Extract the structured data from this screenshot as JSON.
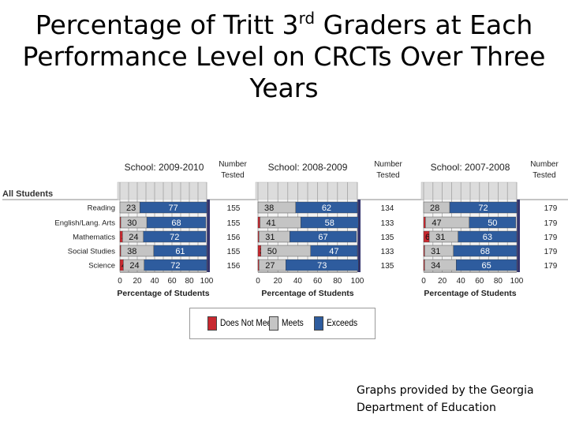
{
  "slide": {
    "title_part1": "Percentage of  Tritt 3",
    "title_sup": "rd",
    "title_part2": " Graders at Each Performance Level on CRCTs Over Three Years",
    "credit_line1": "Graphs provided by the Georgia",
    "credit_line2": "Department of Education"
  },
  "colors": {
    "does_not_meet": "#c8282f",
    "meets": "#c4c4c4",
    "exceeds": "#2e5c9e",
    "panel_back": "#35356e"
  },
  "chart_data": [
    {
      "type": "bar",
      "orientation": "horizontal",
      "stacked": true,
      "title": "School: 2009-2010",
      "group_label": "All Students",
      "categories": [
        "Reading",
        "English/Lang. Arts",
        "Mathematics",
        "Social Studies",
        "Science"
      ],
      "series": [
        {
          "name": "Does Not Meet",
          "values": [
            0,
            1,
            3,
            1,
            4
          ]
        },
        {
          "name": "Meets",
          "values": [
            23,
            30,
            24,
            38,
            24
          ]
        },
        {
          "name": "Exceeds",
          "values": [
            77,
            68,
            72,
            61,
            72
          ]
        }
      ],
      "number_tested_label": "Number Tested",
      "number_tested": [
        "155",
        "155",
        "156",
        "155",
        "156"
      ],
      "xlabel": "Percentage of Students",
      "xticks": [
        "0",
        "20",
        "40",
        "60",
        "80",
        "100"
      ],
      "xlim": [
        0,
        100
      ],
      "grid": true
    },
    {
      "type": "bar",
      "orientation": "horizontal",
      "stacked": true,
      "title": "School: 2008-2009",
      "categories": [
        "Reading",
        "English/Lang. Arts",
        "Mathematics",
        "Social Studies",
        "Science"
      ],
      "series": [
        {
          "name": "Does Not Meet",
          "values": [
            0,
            2,
            1,
            3,
            1
          ]
        },
        {
          "name": "Meets",
          "values": [
            38,
            41,
            31,
            50,
            27
          ]
        },
        {
          "name": "Exceeds",
          "values": [
            62,
            58,
            67,
            47,
            73
          ]
        }
      ],
      "number_tested_label": "Number Tested",
      "number_tested": [
        "134",
        "133",
        "135",
        "133",
        "135"
      ],
      "xlabel": "Percentage of Students",
      "xticks": [
        "0",
        "20",
        "40",
        "60",
        "80",
        "100"
      ],
      "xlim": [
        0,
        100
      ],
      "grid": true
    },
    {
      "type": "bar",
      "orientation": "horizontal",
      "stacked": true,
      "title": "School: 2007-2008",
      "categories": [
        "Reading",
        "English/Lang. Arts",
        "Mathematics",
        "Social Studies",
        "Science"
      ],
      "series": [
        {
          "name": "Does Not Meet",
          "values": [
            0,
            2,
            6,
            1,
            1
          ]
        },
        {
          "name": "Meets",
          "values": [
            28,
            47,
            31,
            31,
            34
          ]
        },
        {
          "name": "Exceeds",
          "values": [
            72,
            50,
            63,
            68,
            65
          ]
        }
      ],
      "number_tested_label": "Number Tested",
      "number_tested": [
        "179",
        "179",
        "179",
        "179",
        "179"
      ],
      "xlabel": "Percentage of Students",
      "xticks": [
        "0",
        "20",
        "40",
        "60",
        "80",
        "100"
      ],
      "xlim": [
        0,
        100
      ],
      "grid": true
    }
  ],
  "legend": {
    "items": [
      {
        "label": "Does Not Meet",
        "key": "does_not_meet"
      },
      {
        "label": "Meets",
        "key": "meets"
      },
      {
        "label": "Exceeds",
        "key": "exceeds"
      }
    ]
  }
}
